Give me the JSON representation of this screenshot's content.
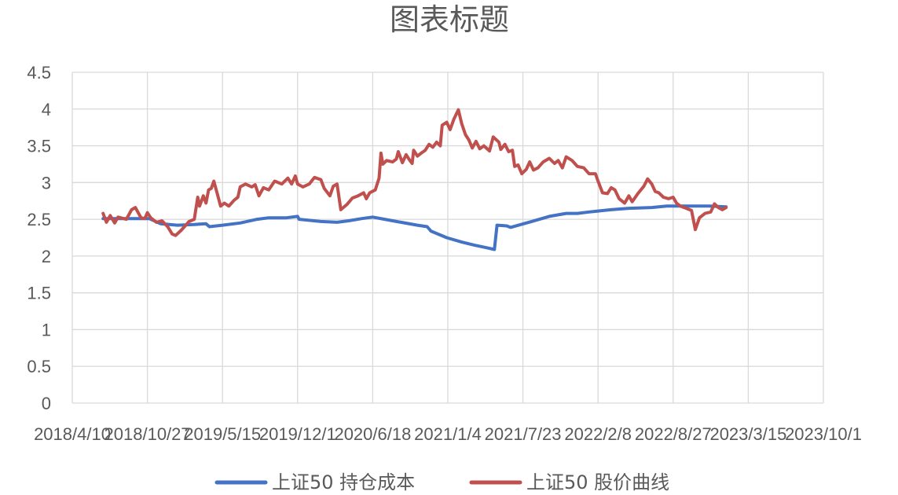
{
  "chart_data": {
    "type": "line",
    "title": "图表标题",
    "xlabel": "",
    "ylabel": "",
    "x_tick_labels": [
      "2018/4/10",
      "2018/10/27",
      "2019/5/15",
      "2019/12/1",
      "2020/6/18",
      "2021/1/4",
      "2021/7/23",
      "2022/2/8",
      "2022/8/27",
      "2023/3/15",
      "2023/10/1"
    ],
    "x_range": [
      "2018/4/10",
      "2023/10/1"
    ],
    "y_tick_labels": [
      "0",
      "0.5",
      "1",
      "1.5",
      "2",
      "2.5",
      "3",
      "3.5",
      "4",
      "4.5"
    ],
    "ylim": [
      0,
      4.5
    ],
    "grid": true,
    "legend_position": "bottom",
    "series": [
      {
        "name": "上证50 持仓成本",
        "color": "#4472C4",
        "points": [
          [
            "2018/7/1",
            2.51
          ],
          [
            "2018/9/1",
            2.51
          ],
          [
            "2018/11/1",
            2.51
          ],
          [
            "2018/12/1",
            2.44
          ],
          [
            "2019/1/15",
            2.42
          ],
          [
            "2019/3/1",
            2.43
          ],
          [
            "2019/4/1",
            2.44
          ],
          [
            "2019/4/10",
            2.4
          ],
          [
            "2019/5/15",
            2.42
          ],
          [
            "2019/7/1",
            2.45
          ],
          [
            "2019/8/15",
            2.5
          ],
          [
            "2019/9/15",
            2.52
          ],
          [
            "2019/11/1",
            2.52
          ],
          [
            "2019/12/1",
            2.54
          ],
          [
            "2019/12/5",
            2.5
          ],
          [
            "2020/2/1",
            2.47
          ],
          [
            "2020/3/15",
            2.46
          ],
          [
            "2020/4/15",
            2.48
          ],
          [
            "2020/5/20",
            2.51
          ],
          [
            "2020/6/18",
            2.53
          ],
          [
            "2020/7/20",
            2.5
          ],
          [
            "2020/9/1",
            2.46
          ],
          [
            "2020/10/15",
            2.42
          ],
          [
            "2020/11/10",
            2.4
          ],
          [
            "2020/11/20",
            2.34
          ],
          [
            "2021/1/1",
            2.25
          ],
          [
            "2021/2/10",
            2.19
          ],
          [
            "2021/3/15",
            2.15
          ],
          [
            "2021/4/20",
            2.11
          ],
          [
            "2021/5/8",
            2.09
          ],
          [
            "2021/5/15",
            2.42
          ],
          [
            "2021/6/10",
            2.41
          ],
          [
            "2021/6/20",
            2.39
          ],
          [
            "2021/8/15",
            2.47
          ],
          [
            "2021/10/1",
            2.54
          ],
          [
            "2021/11/15",
            2.58
          ],
          [
            "2021/12/15",
            2.58
          ],
          [
            "2022/1/15",
            2.6
          ],
          [
            "2022/3/15",
            2.63
          ],
          [
            "2022/5/1",
            2.65
          ],
          [
            "2022/7/1",
            2.66
          ],
          [
            "2022/8/10",
            2.68
          ],
          [
            "2022/10/1",
            2.68
          ],
          [
            "2022/12/1",
            2.68
          ],
          [
            "2023/1/15",
            2.67
          ]
        ]
      },
      {
        "name": "上证50 股价曲线",
        "color": "#C0504D",
        "points": [
          [
            "2018/7/1",
            2.58
          ],
          [
            "2018/7/10",
            2.46
          ],
          [
            "2018/7/20",
            2.55
          ],
          [
            "2018/8/1",
            2.45
          ],
          [
            "2018/8/10",
            2.53
          ],
          [
            "2018/9/1",
            2.5
          ],
          [
            "2018/9/15",
            2.63
          ],
          [
            "2018/9/25",
            2.66
          ],
          [
            "2018/10/10",
            2.52
          ],
          [
            "2018/10/20",
            2.51
          ],
          [
            "2018/10/27",
            2.59
          ],
          [
            "2018/11/5",
            2.52
          ],
          [
            "2018/11/20",
            2.46
          ],
          [
            "2018/12/5",
            2.48
          ],
          [
            "2018/12/20",
            2.4
          ],
          [
            "2019/1/1",
            2.3
          ],
          [
            "2019/1/10",
            2.28
          ],
          [
            "2019/1/25",
            2.35
          ],
          [
            "2019/2/15",
            2.47
          ],
          [
            "2019/3/1",
            2.5
          ],
          [
            "2019/3/10",
            2.8
          ],
          [
            "2019/3/15",
            2.68
          ],
          [
            "2019/3/25",
            2.82
          ],
          [
            "2019/4/1",
            2.72
          ],
          [
            "2019/4/8",
            2.9
          ],
          [
            "2019/4/15",
            2.92
          ],
          [
            "2019/4/22",
            3.02
          ],
          [
            "2019/5/1",
            2.85
          ],
          [
            "2019/5/10",
            2.68
          ],
          [
            "2019/5/20",
            2.72
          ],
          [
            "2019/6/1",
            2.68
          ],
          [
            "2019/6/15",
            2.76
          ],
          [
            "2019/6/25",
            2.8
          ],
          [
            "2019/7/1",
            2.94
          ],
          [
            "2019/7/15",
            2.98
          ],
          [
            "2019/8/1",
            2.94
          ],
          [
            "2019/8/10",
            2.97
          ],
          [
            "2019/8/20",
            2.82
          ],
          [
            "2019/9/1",
            2.93
          ],
          [
            "2019/9/15",
            2.9
          ],
          [
            "2019/10/1",
            3.02
          ],
          [
            "2019/10/20",
            2.98
          ],
          [
            "2019/11/5",
            3.06
          ],
          [
            "2019/11/15",
            2.98
          ],
          [
            "2019/11/25",
            3.09
          ],
          [
            "2019/12/1",
            2.98
          ],
          [
            "2019/12/15",
            2.94
          ],
          [
            "2020/1/1",
            2.98
          ],
          [
            "2020/1/15",
            3.07
          ],
          [
            "2020/2/1",
            3.04
          ],
          [
            "2020/2/10",
            2.92
          ],
          [
            "2020/2/25",
            2.82
          ],
          [
            "2020/3/5",
            2.95
          ],
          [
            "2020/3/15",
            2.98
          ],
          [
            "2020/3/25",
            2.63
          ],
          [
            "2020/4/10",
            2.7
          ],
          [
            "2020/4/25",
            2.79
          ],
          [
            "2020/5/10",
            2.82
          ],
          [
            "2020/5/25",
            2.86
          ],
          [
            "2020/6/1",
            2.78
          ],
          [
            "2020/6/10",
            2.86
          ],
          [
            "2020/6/25",
            2.9
          ],
          [
            "2020/7/5",
            3.06
          ],
          [
            "2020/7/10",
            3.4
          ],
          [
            "2020/7/15",
            3.25
          ],
          [
            "2020/7/25",
            3.3
          ],
          [
            "2020/8/10",
            3.28
          ],
          [
            "2020/8/20",
            3.32
          ],
          [
            "2020/8/25",
            3.42
          ],
          [
            "2020/9/5",
            3.27
          ],
          [
            "2020/9/15",
            3.38
          ],
          [
            "2020/9/25",
            3.3
          ],
          [
            "2020/10/1",
            3.26
          ],
          [
            "2020/10/5",
            3.44
          ],
          [
            "2020/10/15",
            3.36
          ],
          [
            "2020/10/25",
            3.4
          ],
          [
            "2020/11/5",
            3.44
          ],
          [
            "2020/11/15",
            3.52
          ],
          [
            "2020/11/25",
            3.48
          ],
          [
            "2020/12/5",
            3.55
          ],
          [
            "2020/12/15",
            3.5
          ],
          [
            "2020/12/20",
            3.78
          ],
          [
            "2021/1/1",
            3.82
          ],
          [
            "2021/1/10",
            3.72
          ],
          [
            "2021/1/20",
            3.86
          ],
          [
            "2021/2/1",
            3.99
          ],
          [
            "2021/2/10",
            3.8
          ],
          [
            "2021/2/20",
            3.65
          ],
          [
            "2021/3/1",
            3.58
          ],
          [
            "2021/3/10",
            3.47
          ],
          [
            "2021/3/20",
            3.56
          ],
          [
            "2021/3/30",
            3.46
          ],
          [
            "2021/4/10",
            3.5
          ],
          [
            "2021/4/25",
            3.43
          ],
          [
            "2021/5/5",
            3.62
          ],
          [
            "2021/5/20",
            3.55
          ],
          [
            "2021/5/25",
            3.45
          ],
          [
            "2021/6/5",
            3.52
          ],
          [
            "2021/6/15",
            3.42
          ],
          [
            "2021/6/25",
            3.44
          ],
          [
            "2021/7/1",
            3.22
          ],
          [
            "2021/7/10",
            3.24
          ],
          [
            "2021/7/20",
            3.12
          ],
          [
            "2021/8/1",
            3.18
          ],
          [
            "2021/8/10",
            3.28
          ],
          [
            "2021/8/20",
            3.17
          ],
          [
            "2021/9/1",
            3.2
          ],
          [
            "2021/9/15",
            3.28
          ],
          [
            "2021/10/1",
            3.33
          ],
          [
            "2021/10/15",
            3.26
          ],
          [
            "2021/10/25",
            3.3
          ],
          [
            "2021/11/5",
            3.2
          ],
          [
            "2021/11/15",
            3.35
          ],
          [
            "2021/12/1",
            3.3
          ],
          [
            "2021/12/15",
            3.22
          ],
          [
            "2022/1/1",
            3.2
          ],
          [
            "2022/1/15",
            3.12
          ],
          [
            "2022/2/1",
            3.12
          ],
          [
            "2022/2/8",
            3.02
          ],
          [
            "2022/2/20",
            2.86
          ],
          [
            "2022/3/5",
            2.85
          ],
          [
            "2022/3/15",
            2.93
          ],
          [
            "2022/3/25",
            2.9
          ],
          [
            "2022/4/5",
            2.78
          ],
          [
            "2022/4/20",
            2.72
          ],
          [
            "2022/5/1",
            2.82
          ],
          [
            "2022/5/10",
            2.74
          ],
          [
            "2022/5/25",
            2.85
          ],
          [
            "2022/6/10",
            2.95
          ],
          [
            "2022/6/20",
            3.05
          ],
          [
            "2022/7/1",
            2.98
          ],
          [
            "2022/7/10",
            2.88
          ],
          [
            "2022/7/20",
            2.86
          ],
          [
            "2022/8/1",
            2.8
          ],
          [
            "2022/8/15",
            2.78
          ],
          [
            "2022/8/27",
            2.8
          ],
          [
            "2022/9/5",
            2.72
          ],
          [
            "2022/9/15",
            2.68
          ],
          [
            "2022/10/1",
            2.65
          ],
          [
            "2022/10/15",
            2.62
          ],
          [
            "2022/10/25",
            2.36
          ],
          [
            "2022/11/5",
            2.52
          ],
          [
            "2022/11/20",
            2.58
          ],
          [
            "2022/12/5",
            2.6
          ],
          [
            "2022/12/15",
            2.71
          ],
          [
            "2022/12/25",
            2.66
          ],
          [
            "2023/1/5",
            2.63
          ],
          [
            "2023/1/15",
            2.66
          ]
        ]
      }
    ]
  }
}
